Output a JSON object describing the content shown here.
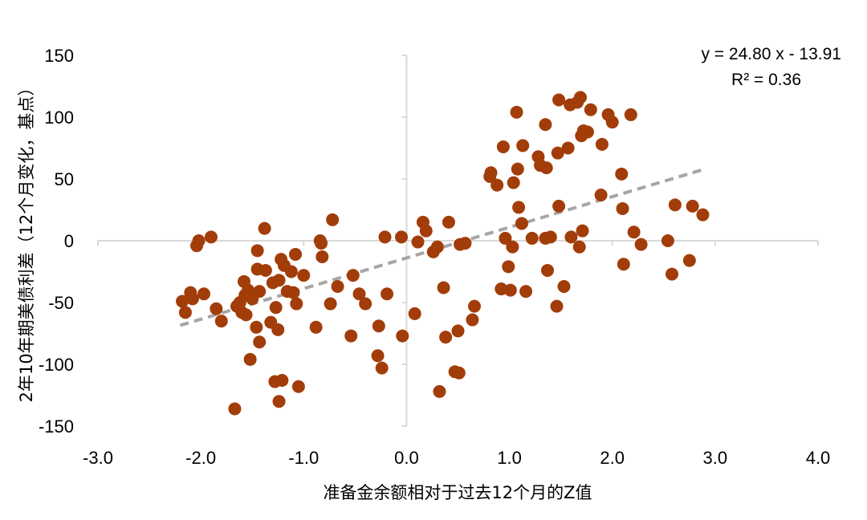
{
  "chart_data": {
    "type": "scatter",
    "xlabel": "准备金余额相对于过去12个月的Z值",
    "ylabel": "2年10年期美债利差（12个月变化，基点）",
    "xlim": [
      -3.0,
      4.0
    ],
    "ylim": [
      -150,
      150
    ],
    "x_ticks": [
      "-3.0",
      "-2.0",
      "-1.0",
      "0.0",
      "1.0",
      "2.0",
      "3.0",
      "4.0"
    ],
    "y_ticks": [
      "150",
      "100",
      "50",
      "0",
      "-50",
      "-100",
      "-150"
    ],
    "grid": false,
    "legend": "none",
    "marker_color": "#A23D0A",
    "trendline_color": "#A6A6A6",
    "axis_color": "#D9D9D9",
    "trendline": {
      "slope": 24.8,
      "intercept": -13.91,
      "x_range": [
        -2.2,
        2.9
      ],
      "equation": "y = 24.80 x - 13.91",
      "r_squared": "R² = 0.36"
    },
    "points": [
      [
        -2.18,
        -49
      ],
      [
        -2.15,
        -58
      ],
      [
        -2.1,
        -42
      ],
      [
        -2.08,
        -47
      ],
      [
        -2.04,
        -4
      ],
      [
        -2.02,
        0
      ],
      [
        -1.97,
        -43
      ],
      [
        -1.9,
        3
      ],
      [
        -1.85,
        -55
      ],
      [
        -1.8,
        -65
      ],
      [
        -1.67,
        -136
      ],
      [
        -1.65,
        -53
      ],
      [
        -1.62,
        -50
      ],
      [
        -1.6,
        -58
      ],
      [
        -1.58,
        -33
      ],
      [
        -1.57,
        -44
      ],
      [
        -1.56,
        -60
      ],
      [
        -1.54,
        -40
      ],
      [
        -1.52,
        -96
      ],
      [
        -1.5,
        -47
      ],
      [
        -1.46,
        -70
      ],
      [
        -1.45,
        -8
      ],
      [
        -1.45,
        -23
      ],
      [
        -1.43,
        -82
      ],
      [
        -1.43,
        -41
      ],
      [
        -1.38,
        10
      ],
      [
        -1.37,
        -24
      ],
      [
        -1.32,
        -66
      ],
      [
        -1.3,
        -34
      ],
      [
        -1.28,
        -114
      ],
      [
        -1.27,
        -54
      ],
      [
        -1.25,
        -72
      ],
      [
        -1.24,
        -32
      ],
      [
        -1.24,
        -130
      ],
      [
        -1.22,
        -15
      ],
      [
        -1.21,
        -113
      ],
      [
        -1.19,
        -20
      ],
      [
        -1.16,
        -41
      ],
      [
        -1.12,
        -25
      ],
      [
        -1.1,
        -42
      ],
      [
        -1.08,
        -11
      ],
      [
        -1.07,
        -51
      ],
      [
        -1.05,
        -118
      ],
      [
        -1.0,
        -28
      ],
      [
        -0.88,
        -70
      ],
      [
        -0.84,
        0
      ],
      [
        -0.83,
        -2
      ],
      [
        -0.82,
        -13
      ],
      [
        -0.74,
        -51
      ],
      [
        -0.72,
        17
      ],
      [
        -0.67,
        -37
      ],
      [
        -0.54,
        -77
      ],
      [
        -0.52,
        -28
      ],
      [
        -0.46,
        -43
      ],
      [
        -0.4,
        -51
      ],
      [
        -0.28,
        -93
      ],
      [
        -0.27,
        -69
      ],
      [
        -0.24,
        -103
      ],
      [
        -0.21,
        3
      ],
      [
        -0.19,
        -43
      ],
      [
        -0.05,
        3
      ],
      [
        -0.04,
        -77
      ],
      [
        0.08,
        -59
      ],
      [
        0.11,
        -1
      ],
      [
        0.16,
        15
      ],
      [
        0.19,
        8
      ],
      [
        0.26,
        -9
      ],
      [
        0.3,
        -5
      ],
      [
        0.32,
        -122
      ],
      [
        0.36,
        -38
      ],
      [
        0.38,
        -78
      ],
      [
        0.41,
        15
      ],
      [
        0.47,
        -106
      ],
      [
        0.5,
        -73
      ],
      [
        0.51,
        -107
      ],
      [
        0.52,
        -3
      ],
      [
        0.57,
        -2
      ],
      [
        0.64,
        -64
      ],
      [
        0.66,
        -53
      ],
      [
        0.81,
        52
      ],
      [
        0.82,
        55
      ],
      [
        0.88,
        45
      ],
      [
        0.92,
        -39
      ],
      [
        0.94,
        76
      ],
      [
        0.96,
        2
      ],
      [
        0.99,
        -21
      ],
      [
        1.01,
        -40
      ],
      [
        1.03,
        -5
      ],
      [
        1.04,
        47
      ],
      [
        1.07,
        104
      ],
      [
        1.08,
        58
      ],
      [
        1.09,
        27
      ],
      [
        1.12,
        14
      ],
      [
        1.13,
        77
      ],
      [
        1.16,
        -41
      ],
      [
        1.22,
        2
      ],
      [
        1.28,
        68
      ],
      [
        1.3,
        61
      ],
      [
        1.35,
        94
      ],
      [
        1.35,
        2
      ],
      [
        1.36,
        59
      ],
      [
        1.37,
        -24
      ],
      [
        1.4,
        3
      ],
      [
        1.46,
        -53
      ],
      [
        1.47,
        71
      ],
      [
        1.48,
        114
      ],
      [
        1.48,
        28
      ],
      [
        1.53,
        -37
      ],
      [
        1.57,
        75
      ],
      [
        1.59,
        110
      ],
      [
        1.6,
        3
      ],
      [
        1.66,
        112
      ],
      [
        1.68,
        -5
      ],
      [
        1.69,
        116
      ],
      [
        1.7,
        85
      ],
      [
        1.71,
        8
      ],
      [
        1.72,
        89
      ],
      [
        1.76,
        88
      ],
      [
        1.79,
        106
      ],
      [
        1.89,
        37
      ],
      [
        1.9,
        78
      ],
      [
        1.96,
        102
      ],
      [
        2.0,
        96
      ],
      [
        2.09,
        54
      ],
      [
        2.1,
        26
      ],
      [
        2.11,
        -19
      ],
      [
        2.18,
        102
      ],
      [
        2.21,
        7
      ],
      [
        2.28,
        -3
      ],
      [
        2.54,
        0
      ],
      [
        2.58,
        -27
      ],
      [
        2.61,
        29
      ],
      [
        2.75,
        -16
      ],
      [
        2.78,
        28
      ],
      [
        2.88,
        21
      ]
    ]
  }
}
